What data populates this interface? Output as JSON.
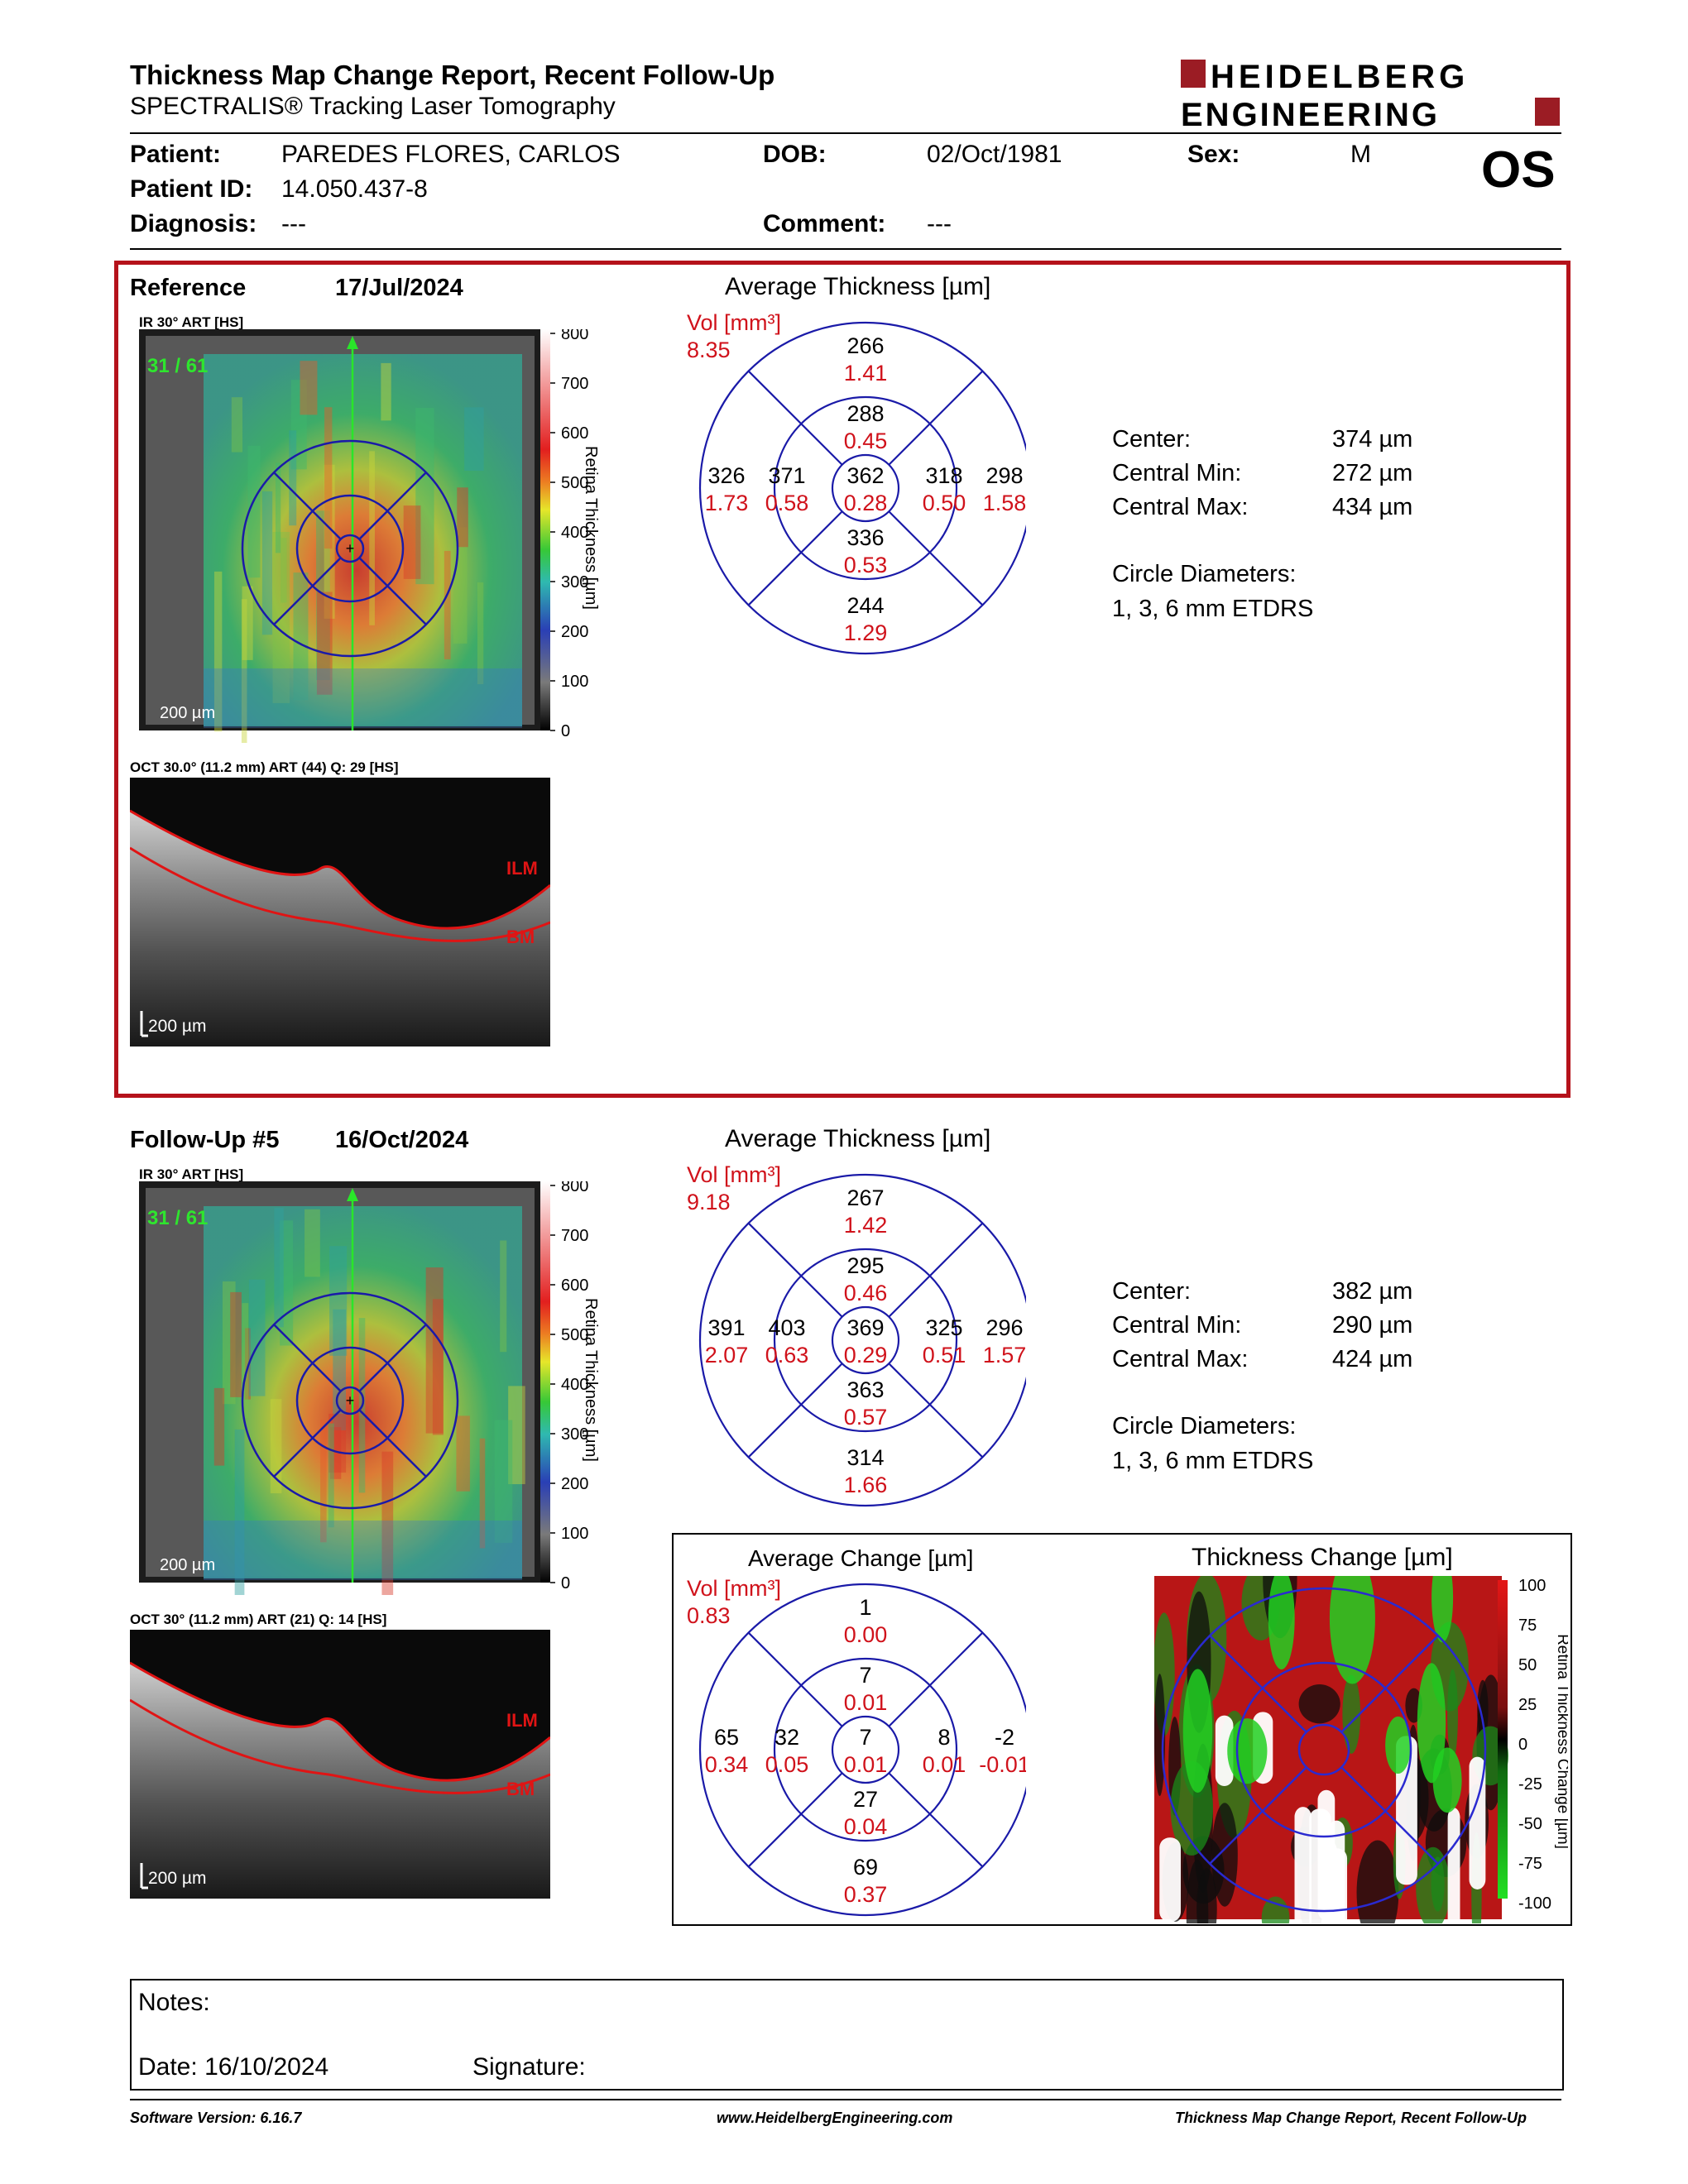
{
  "header": {
    "title": "Thickness Map Change Report, Recent Follow-Up",
    "subtitle": "SPECTRALIS® Tracking Laser Tomography",
    "logo_line1": "HEIDELBERG",
    "logo_line2": "ENGINEERING",
    "brand_color": "#9b1c24"
  },
  "patient": {
    "patient_label": "Patient:",
    "patient_value": "PAREDES FLORES, CARLOS",
    "dob_label": "DOB:",
    "dob_value": "02/Oct/1981",
    "sex_label": "Sex:",
    "sex_value": "M",
    "id_label": "Patient ID:",
    "id_value": "14.050.437-8",
    "diagnosis_label": "Diagnosis:",
    "diagnosis_value": "---",
    "comment_label": "Comment:",
    "comment_value": "---",
    "eye": "OS"
  },
  "reference": {
    "label": "Reference",
    "date": "17/Jul/2024",
    "ir_caption": "IR 30° ART [HS]",
    "frame": "31 / 61",
    "scale": "200 µm",
    "colorbar_ticks": [
      "800",
      "700",
      "600",
      "500",
      "400",
      "300",
      "200",
      "100",
      "0"
    ],
    "colorbar_label": "Retina Thickness [µm]",
    "oct_caption": "OCT 30.0° (11.2 mm) ART (44) Q: 29 [HS]",
    "oct_scale": "200 µm",
    "layer_top": "ILM",
    "layer_bottom": "BM",
    "chart_title": "Average Thickness [µm]",
    "vol_label": "Vol [mm³]",
    "vol_value": "8.35",
    "sectors": {
      "center": {
        "t": "362",
        "v": "0.28"
      },
      "inner_sup": {
        "t": "288",
        "v": "0.45"
      },
      "inner_inf": {
        "t": "336",
        "v": "0.53"
      },
      "inner_left": {
        "t": "371",
        "v": "0.58"
      },
      "inner_right": {
        "t": "318",
        "v": "0.50"
      },
      "outer_sup": {
        "t": "266",
        "v": "1.41"
      },
      "outer_inf": {
        "t": "244",
        "v": "1.29"
      },
      "outer_left": {
        "t": "326",
        "v": "1.73"
      },
      "outer_right": {
        "t": "298",
        "v": "1.58"
      }
    },
    "stats": [
      {
        "label": "Center:",
        "value": "374 µm"
      },
      {
        "label": "Central Min:",
        "value": "272 µm"
      },
      {
        "label": "Central Max:",
        "value": "434 µm"
      }
    ],
    "circle_label": "Circle Diameters:",
    "circle_value": "1, 3, 6 mm ETDRS"
  },
  "followup": {
    "label": "Follow-Up #5",
    "date": "16/Oct/2024",
    "ir_caption": "IR 30° ART [HS]",
    "frame": "31 / 61",
    "scale": "200 µm",
    "colorbar_ticks": [
      "800",
      "700",
      "600",
      "500",
      "400",
      "300",
      "200",
      "100",
      "0"
    ],
    "colorbar_label": "Retina Thickness [µm]",
    "oct_caption": "OCT 30° (11.2 mm) ART (21) Q: 14 [HS]",
    "oct_scale": "200 µm",
    "layer_top": "ILM",
    "layer_bottom": "BM",
    "chart_title": "Average Thickness [µm]",
    "vol_label": "Vol [mm³]",
    "vol_value": "9.18",
    "sectors": {
      "center": {
        "t": "369",
        "v": "0.29"
      },
      "inner_sup": {
        "t": "295",
        "v": "0.46"
      },
      "inner_inf": {
        "t": "363",
        "v": "0.57"
      },
      "inner_left": {
        "t": "403",
        "v": "0.63"
      },
      "inner_right": {
        "t": "325",
        "v": "0.51"
      },
      "outer_sup": {
        "t": "267",
        "v": "1.42"
      },
      "outer_inf": {
        "t": "314",
        "v": "1.66"
      },
      "outer_left": {
        "t": "391",
        "v": "2.07"
      },
      "outer_right": {
        "t": "296",
        "v": "1.57"
      }
    },
    "stats": [
      {
        "label": "Center:",
        "value": "382 µm"
      },
      {
        "label": "Central Min:",
        "value": "290 µm"
      },
      {
        "label": "Central Max:",
        "value": "424 µm"
      }
    ],
    "circle_label": "Circle Diameters:",
    "circle_value": "1, 3, 6 mm ETDRS"
  },
  "change": {
    "chart_title": "Average Change [µm]",
    "vol_label": "Vol [mm³]",
    "vol_value": "0.83",
    "sectors": {
      "center": {
        "t": "7",
        "v": "0.01"
      },
      "inner_sup": {
        "t": "7",
        "v": "0.01"
      },
      "inner_inf": {
        "t": "27",
        "v": "0.04"
      },
      "inner_left": {
        "t": "32",
        "v": "0.05"
      },
      "inner_right": {
        "t": "8",
        "v": "0.01"
      },
      "outer_sup": {
        "t": "1",
        "v": "0.00"
      },
      "outer_inf": {
        "t": "69",
        "v": "0.37"
      },
      "outer_left": {
        "t": "65",
        "v": "0.34"
      },
      "outer_right": {
        "t": "-2",
        "v": "-0.01"
      }
    },
    "map_title": "Thickness Change [µm]",
    "map_ticks": [
      "100",
      "75",
      "50",
      "25",
      "0",
      "-25",
      "-50",
      "-75",
      "-100"
    ],
    "map_label": "Retina Thickness Change [µm]"
  },
  "notes": {
    "notes_label": "Notes:",
    "date_label": "Date:",
    "date_value": "16/10/2024",
    "signature_label": "Signature:"
  },
  "footer": {
    "software": "Software Version: 6.16.7",
    "website": "www.HeidelbergEngineering.com",
    "report": "Thickness Map Change Report, Recent Follow-Up"
  }
}
